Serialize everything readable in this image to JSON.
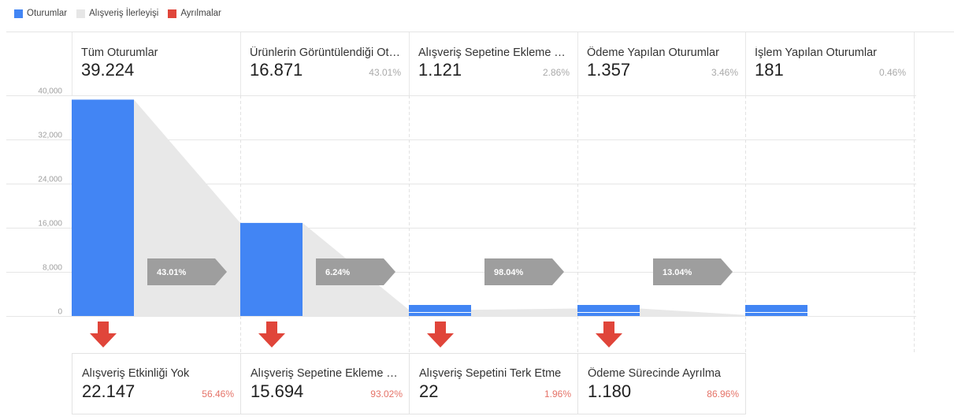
{
  "legend": [
    {
      "label": "Oturumlar",
      "color": "#4285f4"
    },
    {
      "label": "Alışveriş İlerleyişi",
      "color": "#e6e6e6"
    },
    {
      "label": "Ayrılmalar",
      "color": "#e0453a"
    }
  ],
  "colors": {
    "bar": "#4285f4",
    "flow": "#e8e8e8",
    "arrow": "#9e9e9e",
    "drop": "#e0453a"
  },
  "chart_data": {
    "type": "bar",
    "title": "",
    "xlabel": "",
    "ylabel": "",
    "ylim": [
      0,
      40000
    ],
    "yticks": [
      "40,000",
      "32,000",
      "24,000",
      "16,000",
      "8,000",
      "0"
    ],
    "ytick_values": [
      40000,
      32000,
      24000,
      16000,
      8000,
      0
    ],
    "categories": [
      "Tüm Oturumlar",
      "Ürünlerin Görüntülendiği Ot…",
      "Alışveriş Sepetine Ekleme Y…",
      "Ödeme Yapılan Oturumlar",
      "İşlem Yapılan Oturumlar"
    ],
    "values": [
      39224,
      16871,
      1121,
      1357,
      181
    ],
    "progression": [
      "43.01%",
      "6.24%",
      "98.04%",
      "13.04%"
    ]
  },
  "stages": [
    {
      "label": "Tüm Oturumlar",
      "value": "39.224",
      "pct": ""
    },
    {
      "label": "Ürünlerin Görüntülendiği Ot…",
      "value": "16.871",
      "pct": "43.01%"
    },
    {
      "label": "Alışveriş Sepetine Ekleme Y…",
      "value": "1.121",
      "pct": "2.86%"
    },
    {
      "label": "Ödeme Yapılan Oturumlar",
      "value": "1.357",
      "pct": "3.46%"
    },
    {
      "label": "İşlem Yapılan Oturumlar",
      "value": "181",
      "pct": "0.46%"
    }
  ],
  "dropoffs": [
    {
      "label": "Alışveriş Etkinliği Yok",
      "value": "22.147",
      "pct": "56.46%"
    },
    {
      "label": "Alışveriş Sepetine Ekleme Y…",
      "value": "15.694",
      "pct": "93.02%"
    },
    {
      "label": "Alışveriş Sepetini Terk Etme",
      "value": "22",
      "pct": "1.96%"
    },
    {
      "label": "Ödeme Sürecinde Ayrılma",
      "value": "1.180",
      "pct": "86.96%"
    }
  ]
}
